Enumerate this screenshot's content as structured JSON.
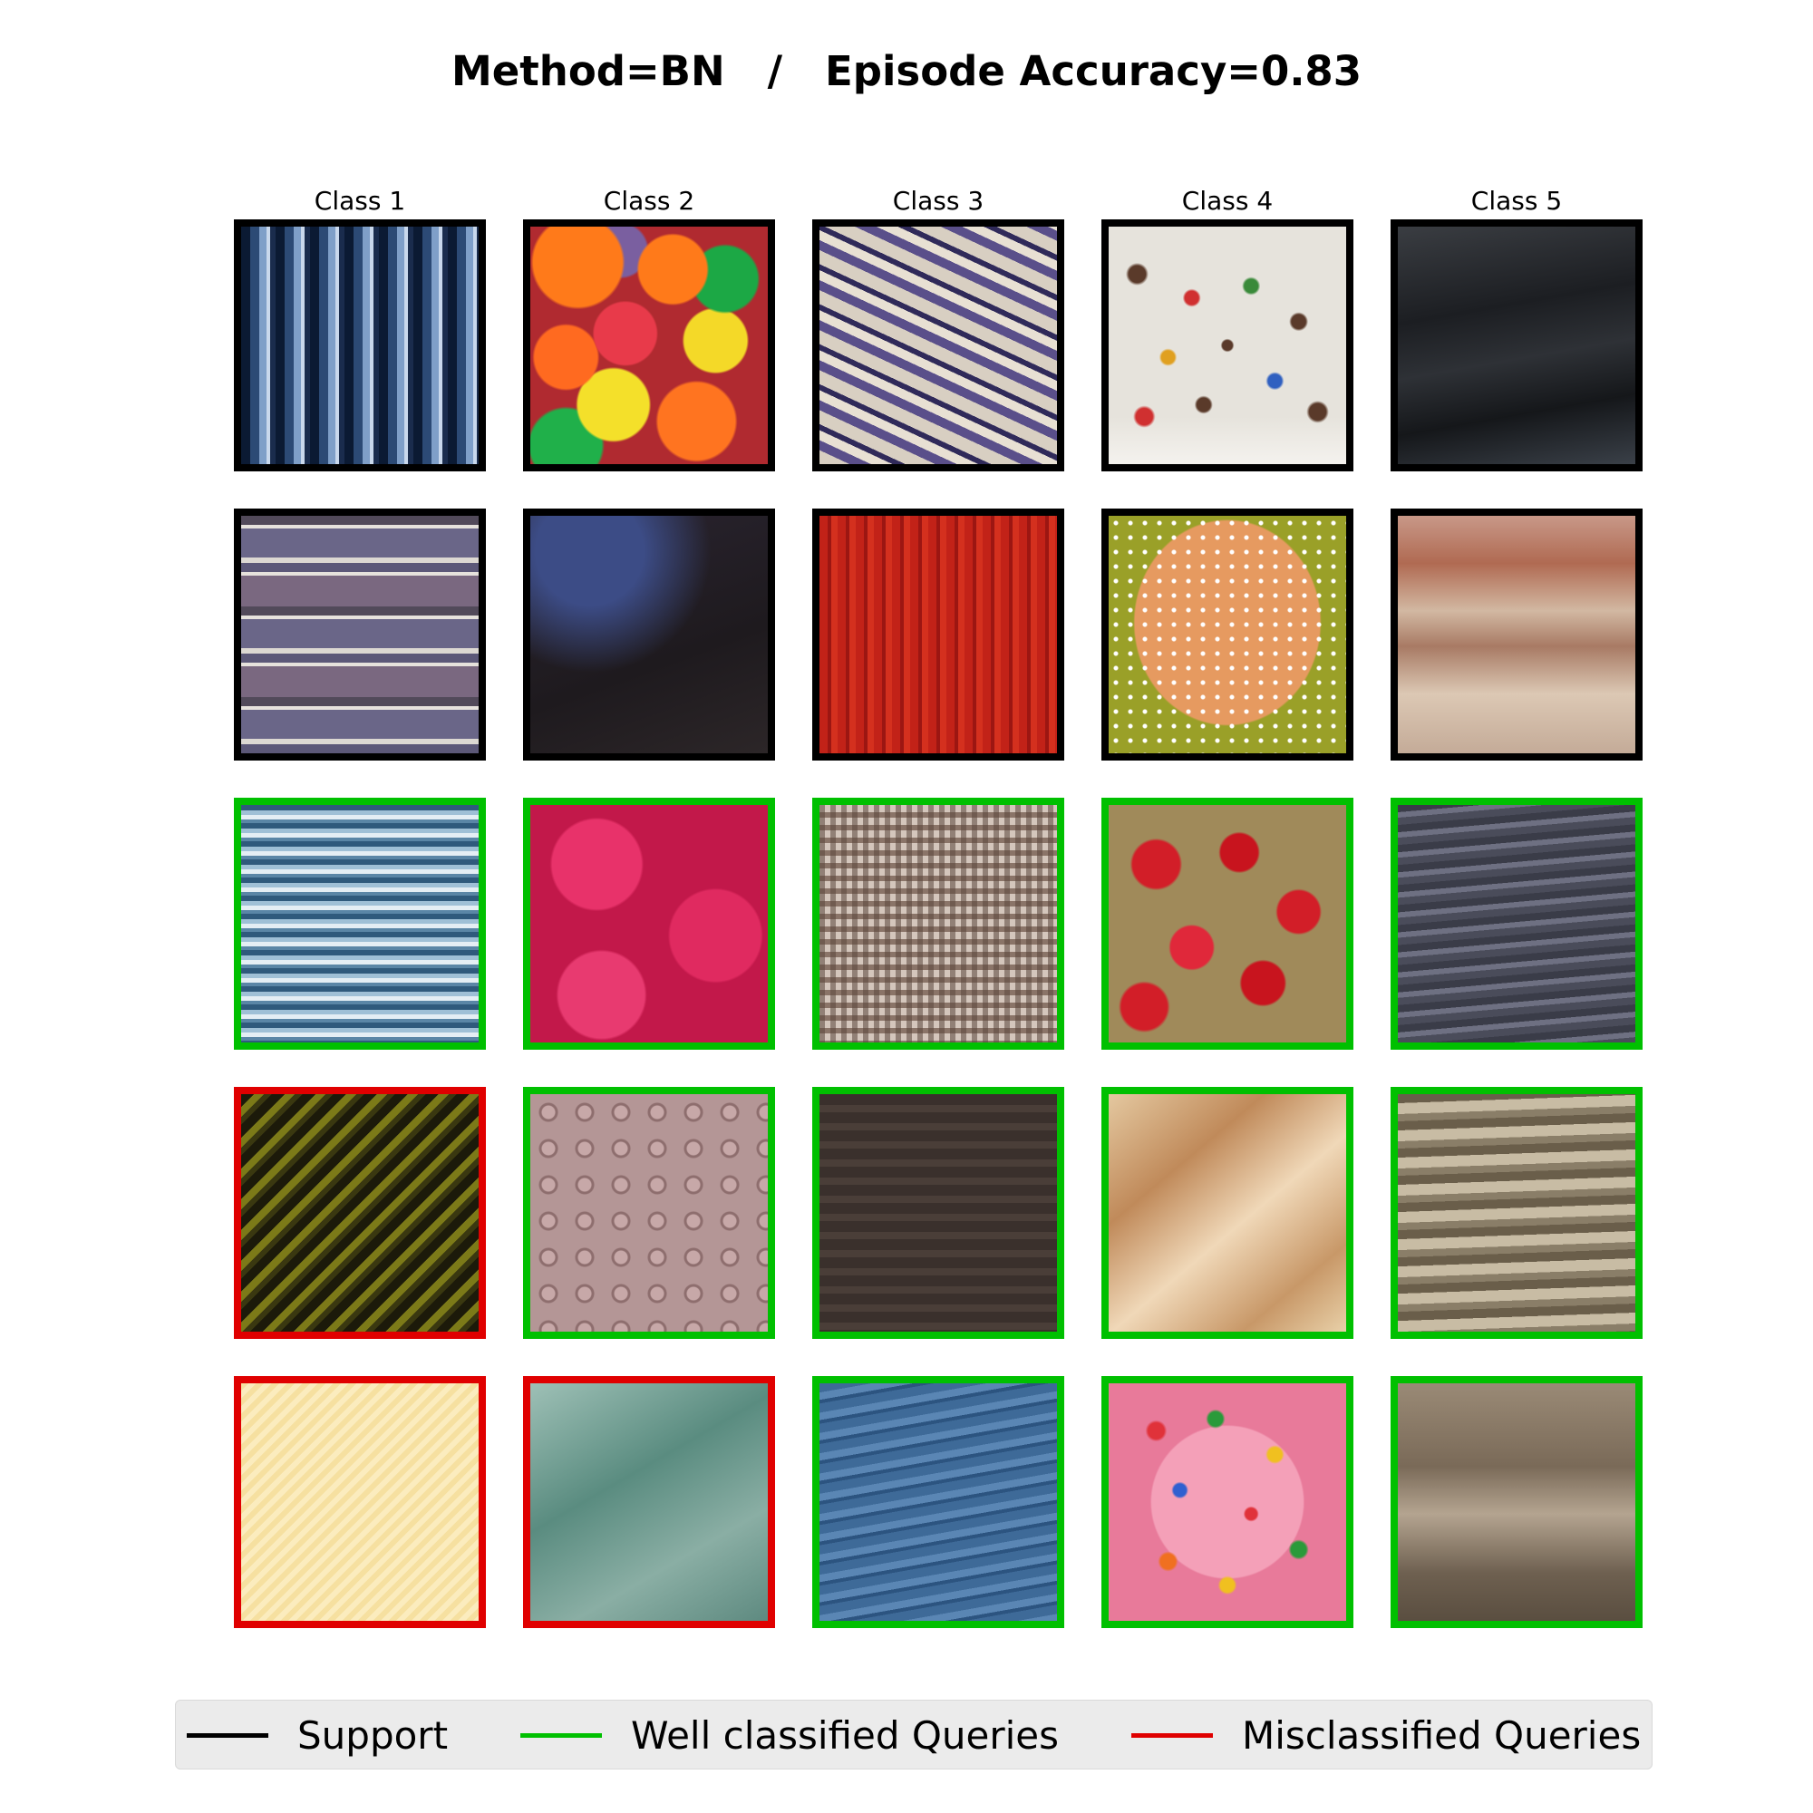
{
  "title": "Method=BN   /   Episode Accuracy=0.83",
  "columns": [
    "Class 1",
    "Class 2",
    "Class 3",
    "Class 4",
    "Class 5"
  ],
  "legend": [
    {
      "label": "Support",
      "color": "#000000"
    },
    {
      "label": "Well classified Queries",
      "color": "#00c000"
    },
    {
      "label": "Misclassified Queries",
      "color": "#e00000"
    }
  ],
  "grid": [
    [
      "support",
      "support",
      "support",
      "support",
      "support"
    ],
    [
      "support",
      "support",
      "support",
      "support",
      "support"
    ],
    [
      "well",
      "well",
      "well",
      "well",
      "well"
    ],
    [
      "misclassified",
      "well",
      "well",
      "well",
      "well"
    ],
    [
      "misclassified",
      "misclassified",
      "well",
      "well",
      "well"
    ]
  ],
  "textures": [
    [
      "vertical-blue-stripes",
      "colorful-candies",
      "fuzzy-knit",
      "sprinkles-on-icing",
      "dark-rock"
    ],
    [
      "horizontal-stripes",
      "dark-bumpy-surface",
      "red-knit",
      "sprinkled-sphere",
      "layered-red-rock"
    ],
    [
      "blue-horizontal-stripes",
      "pink-bubbles",
      "woven-fabric",
      "red-crumble",
      "gray-layered-rock"
    ],
    [
      "diagonal-yellow-stripes",
      "studded-metal",
      "dark-knit",
      "pastry-crust",
      "tan-layered-rock"
    ],
    [
      "pale-yellow-diagonal",
      "green-crinkled-sheet",
      "blue-knit",
      "sprinkled-donut",
      "brown-layered-rock"
    ]
  ]
}
